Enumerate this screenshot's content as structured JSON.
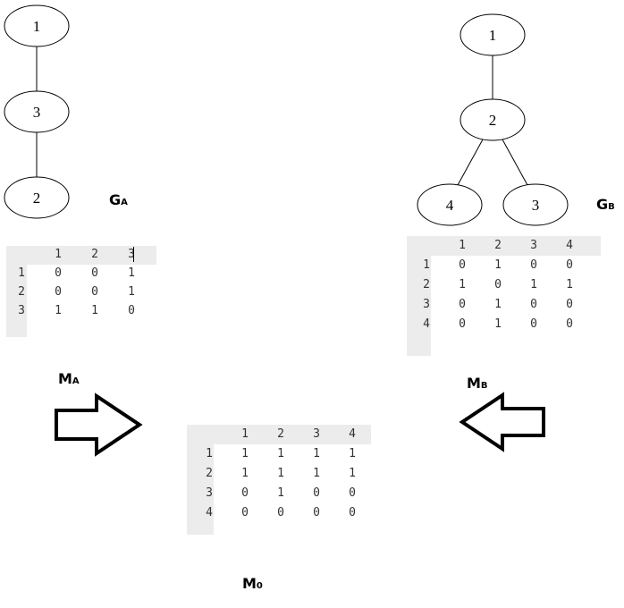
{
  "graph_a": {
    "label_main": "G",
    "label_sub": "A",
    "nodes": [
      "1",
      "3",
      "2"
    ],
    "edges": [
      [
        "1",
        "3"
      ],
      [
        "3",
        "2"
      ]
    ]
  },
  "graph_b": {
    "label_main": "G",
    "label_sub": "B",
    "nodes": [
      "1",
      "2",
      "4",
      "3"
    ],
    "edges": [
      [
        "1",
        "2"
      ],
      [
        "2",
        "4"
      ],
      [
        "2",
        "3"
      ]
    ]
  },
  "matrix_a": {
    "label_main": "M",
    "label_sub": "A",
    "headers": [
      "1",
      "2",
      "3"
    ],
    "rows": [
      {
        "head": "1",
        "cells": [
          "0",
          "0",
          "1"
        ]
      },
      {
        "head": "2",
        "cells": [
          "0",
          "0",
          "1"
        ]
      },
      {
        "head": "3",
        "cells": [
          "1",
          "1",
          "0"
        ]
      }
    ]
  },
  "matrix_b": {
    "label_main": "M",
    "label_sub": "B",
    "headers": [
      "1",
      "2",
      "3",
      "4"
    ],
    "rows": [
      {
        "head": "1",
        "cells": [
          "0",
          "1",
          "0",
          "0"
        ]
      },
      {
        "head": "2",
        "cells": [
          "1",
          "0",
          "1",
          "1"
        ]
      },
      {
        "head": "3",
        "cells": [
          "0",
          "1",
          "0",
          "0"
        ]
      },
      {
        "head": "4",
        "cells": [
          "0",
          "1",
          "0",
          "0"
        ]
      }
    ]
  },
  "matrix_0": {
    "label_main": "M",
    "label_sub": "0",
    "headers": [
      "1",
      "2",
      "3",
      "4"
    ],
    "rows": [
      {
        "head": "1",
        "cells": [
          "1",
          "1",
          "1",
          "1"
        ]
      },
      {
        "head": "2",
        "cells": [
          "1",
          "1",
          "1",
          "1"
        ]
      },
      {
        "head": "3",
        "cells": [
          "0",
          "1",
          "0",
          "0"
        ]
      },
      {
        "head": "4",
        "cells": [
          "0",
          "0",
          "0",
          "0"
        ]
      }
    ]
  }
}
